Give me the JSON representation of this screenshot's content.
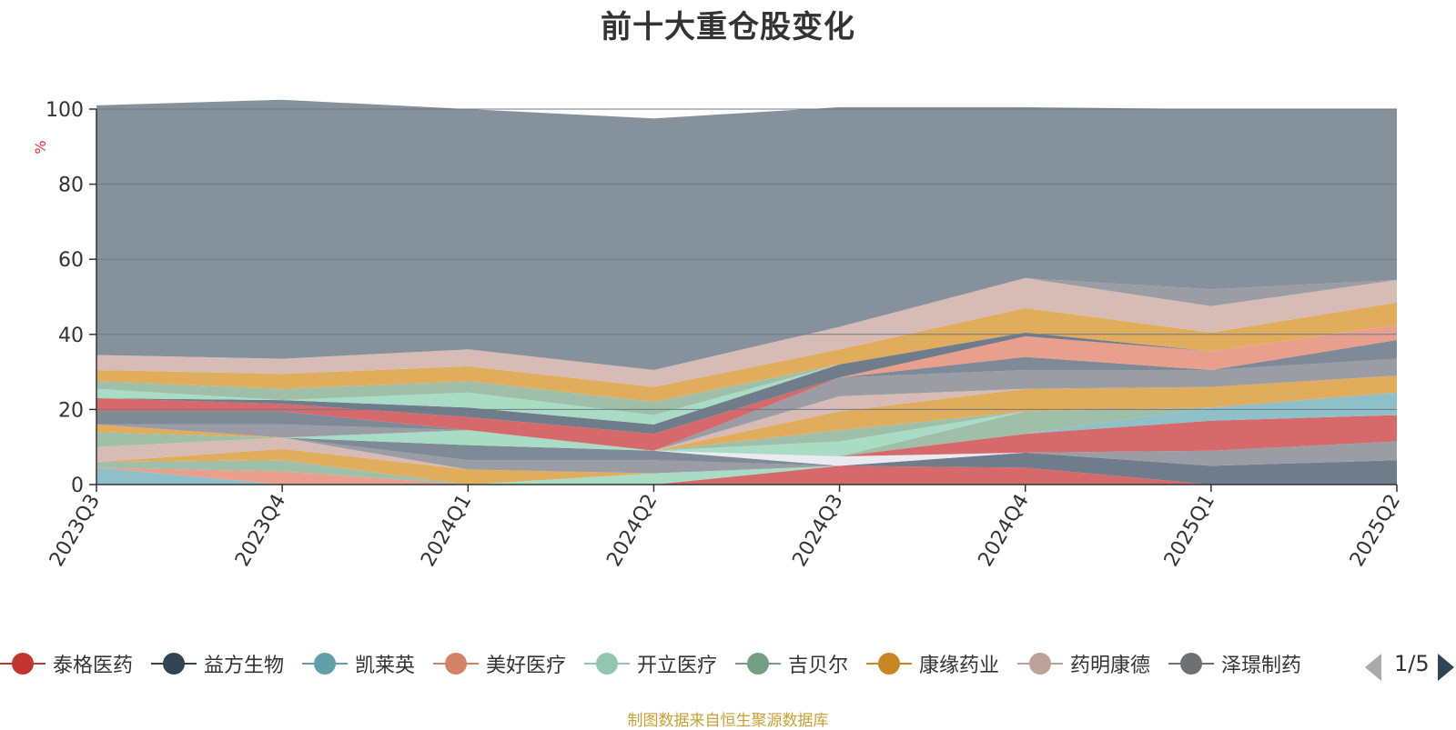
{
  "chart_data": {
    "type": "area",
    "stacked": true,
    "title": "前十大重仓股变化",
    "ylabel": "%",
    "ylim": [
      0,
      100
    ],
    "yticks": [
      0,
      20,
      40,
      60,
      80,
      100
    ],
    "x": [
      "2023Q3",
      "2023Q4",
      "2024Q1",
      "2024Q2",
      "2024Q3",
      "2024Q4",
      "2025Q1",
      "2025Q2"
    ],
    "series": [
      {
        "name": "泰格医药",
        "color": "#d66a6a",
        "values": [
          0,
          0,
          0,
          0,
          5,
          4.5,
          0,
          0
        ]
      },
      {
        "name": "益方生物",
        "color": "#6f7d8a",
        "values": [
          0,
          0,
          0,
          0,
          0,
          4,
          5,
          6.5
        ]
      },
      {
        "name": "凯莱英",
        "color": "#8ec0c8",
        "values": [
          4.5,
          0,
          0,
          0,
          0,
          0,
          0,
          0
        ]
      },
      {
        "name": "美好医疗",
        "color": "#e8a08d",
        "values": [
          0,
          3.5,
          0,
          0,
          0,
          0,
          0,
          0
        ]
      },
      {
        "name": "开立医疗",
        "color": "#a8dcc4",
        "values": [
          0,
          0,
          0,
          3,
          0,
          0,
          0,
          0
        ]
      },
      {
        "name": "吉贝尔",
        "color": "#9fbfa8",
        "values": [
          1.5,
          3,
          0,
          0,
          0,
          0,
          0,
          0
        ]
      },
      {
        "name": "康缘药业",
        "color": "#e0ad5c",
        "values": [
          0,
          3,
          4,
          0,
          0,
          0,
          0,
          0
        ]
      },
      {
        "name": "药明康德",
        "color": "#d7bcb5",
        "values": [
          4,
          3,
          0,
          0,
          0,
          0,
          0,
          0
        ]
      },
      {
        "name": "泽璟制药",
        "color": "#9a9da3",
        "values": [
          0,
          0,
          2.5,
          3.5,
          0,
          0,
          4,
          5
        ]
      },
      {
        "name": "",
        "color": "#7e8a95",
        "values": [
          0,
          0,
          4,
          2.5,
          0,
          0,
          0,
          0
        ]
      },
      {
        "name": "",
        "color": "#eaeaf0",
        "values": [
          0,
          0,
          0,
          0,
          2.5,
          0,
          0,
          0
        ]
      },
      {
        "name": "",
        "color": "#d66a6a",
        "values": [
          0,
          0,
          0,
          0,
          0,
          5,
          8,
          7
        ]
      },
      {
        "name": "",
        "color": "#8ec0c8",
        "values": [
          0,
          0,
          0,
          0,
          0,
          0,
          3.5,
          6
        ]
      },
      {
        "name": "",
        "color": "#e8a08d",
        "values": [
          0,
          0,
          0,
          0,
          0,
          0,
          0,
          0
        ]
      },
      {
        "name": "",
        "color": "#a8dcc4",
        "values": [
          0,
          0,
          4,
          0,
          0,
          0,
          0,
          0
        ]
      },
      {
        "name": "",
        "color": "#9fbfa8",
        "values": [
          0,
          0,
          0,
          0,
          0,
          6,
          0,
          0
        ]
      },
      {
        "name": "",
        "color": "#a8dcc4",
        "values": [
          0,
          0,
          0,
          0,
          4,
          0,
          0,
          0
        ]
      },
      {
        "name": "",
        "color": "#9fbfa8",
        "values": [
          4,
          0,
          0,
          0,
          3,
          0,
          0,
          0
        ]
      },
      {
        "name": "",
        "color": "#e0ad5c",
        "values": [
          2,
          0,
          0,
          0,
          5,
          6,
          5.5,
          4.5
        ]
      },
      {
        "name": "",
        "color": "#d7bcb5",
        "values": [
          0,
          0,
          0,
          0,
          4,
          0,
          0,
          0
        ]
      },
      {
        "name": "",
        "color": "#9a9da3",
        "values": [
          0,
          3.5,
          0,
          0,
          5,
          5,
          4.5,
          4.5
        ]
      },
      {
        "name": "",
        "color": "#7e8a95",
        "values": [
          3.5,
          3.5,
          0,
          0,
          0,
          3.5,
          0,
          5
        ]
      },
      {
        "name": "",
        "color": "#d66a6a",
        "values": [
          3.5,
          2,
          3.5,
          4.5,
          0,
          0,
          0,
          0
        ]
      },
      {
        "name": "",
        "color": "#e8a08d",
        "values": [
          0,
          0,
          0,
          0,
          0,
          5.5,
          5,
          4
        ]
      },
      {
        "name": "",
        "color": "#6f7d8a",
        "values": [
          0,
          1,
          2.5,
          2.5,
          3.5,
          1,
          0,
          0
        ]
      },
      {
        "name": "",
        "color": "#a8dcc4",
        "values": [
          2.5,
          0,
          4,
          2.5,
          0,
          0,
          0,
          0
        ]
      },
      {
        "name": "",
        "color": "#9fbfa8",
        "values": [
          2,
          3,
          3,
          3.5,
          0,
          0,
          0,
          0
        ]
      },
      {
        "name": "",
        "color": "#e0ad5c",
        "values": [
          3,
          4,
          4,
          4,
          4,
          6.5,
          5,
          6
        ]
      },
      {
        "name": "",
        "color": "#d7bcb5",
        "values": [
          4,
          4,
          4.5,
          4.5,
          6,
          8,
          7,
          6
        ]
      },
      {
        "name": "",
        "color": "#9a9da3",
        "values": [
          0,
          0,
          0,
          0,
          0,
          0,
          4.5,
          0
        ]
      },
      {
        "name": "",
        "color": "#85929b",
        "values": [
          66.5,
          69,
          64,
          67,
          58.5,
          45.5,
          48,
          45.5
        ]
      }
    ],
    "legend": {
      "items": [
        {
          "name": "泰格医药",
          "color": "#c23531"
        },
        {
          "name": "益方生物",
          "color": "#2f4554"
        },
        {
          "name": "凯莱英",
          "color": "#61a0a8"
        },
        {
          "name": "美好医疗",
          "color": "#d48265"
        },
        {
          "name": "开立医疗",
          "color": "#91c7ae"
        },
        {
          "name": "吉贝尔",
          "color": "#749f83"
        },
        {
          "name": "康缘药业",
          "color": "#ca8622"
        },
        {
          "name": "药明康德",
          "color": "#bda29a"
        },
        {
          "name": "泽璟制药",
          "color": "#6e7074"
        }
      ],
      "page": "1/5",
      "position": "bottom"
    },
    "note": "制图数据来自恒生聚源数据库",
    "grid": true
  }
}
